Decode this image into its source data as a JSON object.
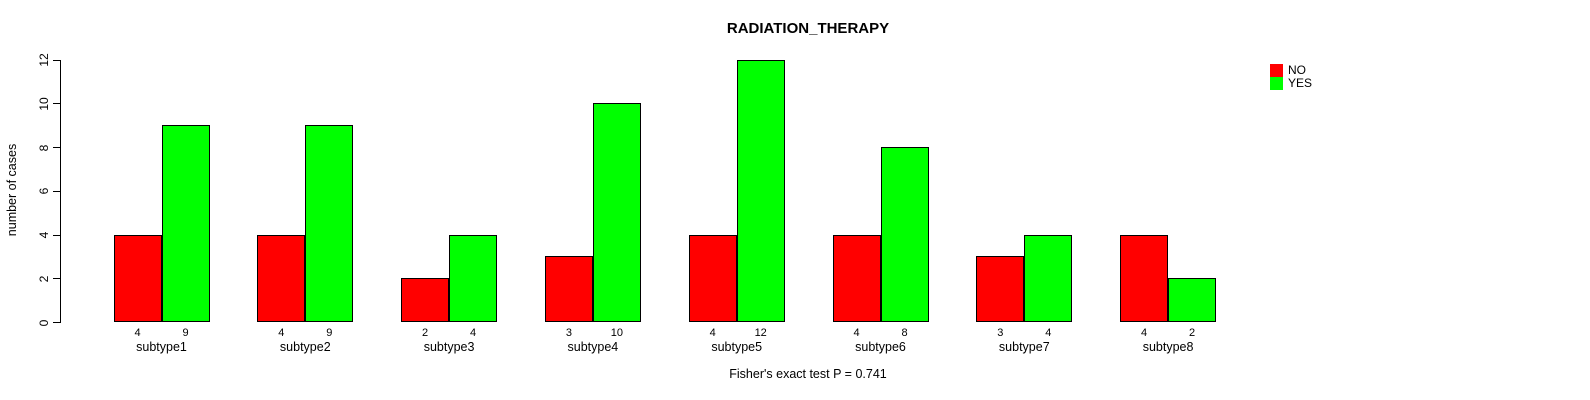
{
  "chart_data": {
    "type": "bar",
    "title": "RADIATION_THERAPY",
    "xlabel": "",
    "ylabel": "number of cases",
    "categories": [
      "subtype1",
      "subtype2",
      "subtype3",
      "subtype4",
      "subtype5",
      "subtype6",
      "subtype7",
      "subtype8"
    ],
    "series": [
      {
        "name": "NO",
        "color": "#FF0000",
        "values": [
          4,
          4,
          2,
          3,
          4,
          4,
          3,
          4
        ]
      },
      {
        "name": "YES",
        "color": "#00FF00",
        "values": [
          9,
          9,
          4,
          10,
          12,
          8,
          4,
          2
        ]
      }
    ],
    "bar_value_labels": [
      [
        "4",
        "9"
      ],
      [
        "4",
        "9"
      ],
      [
        "2",
        "4"
      ],
      [
        "3",
        "10"
      ],
      [
        "4",
        "12"
      ],
      [
        "4",
        "8"
      ],
      [
        "3",
        "4"
      ],
      [
        "4",
        "2"
      ]
    ],
    "ylim": [
      0,
      12
    ],
    "yticks": [
      0,
      2,
      4,
      6,
      8,
      10,
      12
    ],
    "grid": false,
    "legend_position": "top-right",
    "annotation": "Fisher's exact test P = 0.741"
  }
}
